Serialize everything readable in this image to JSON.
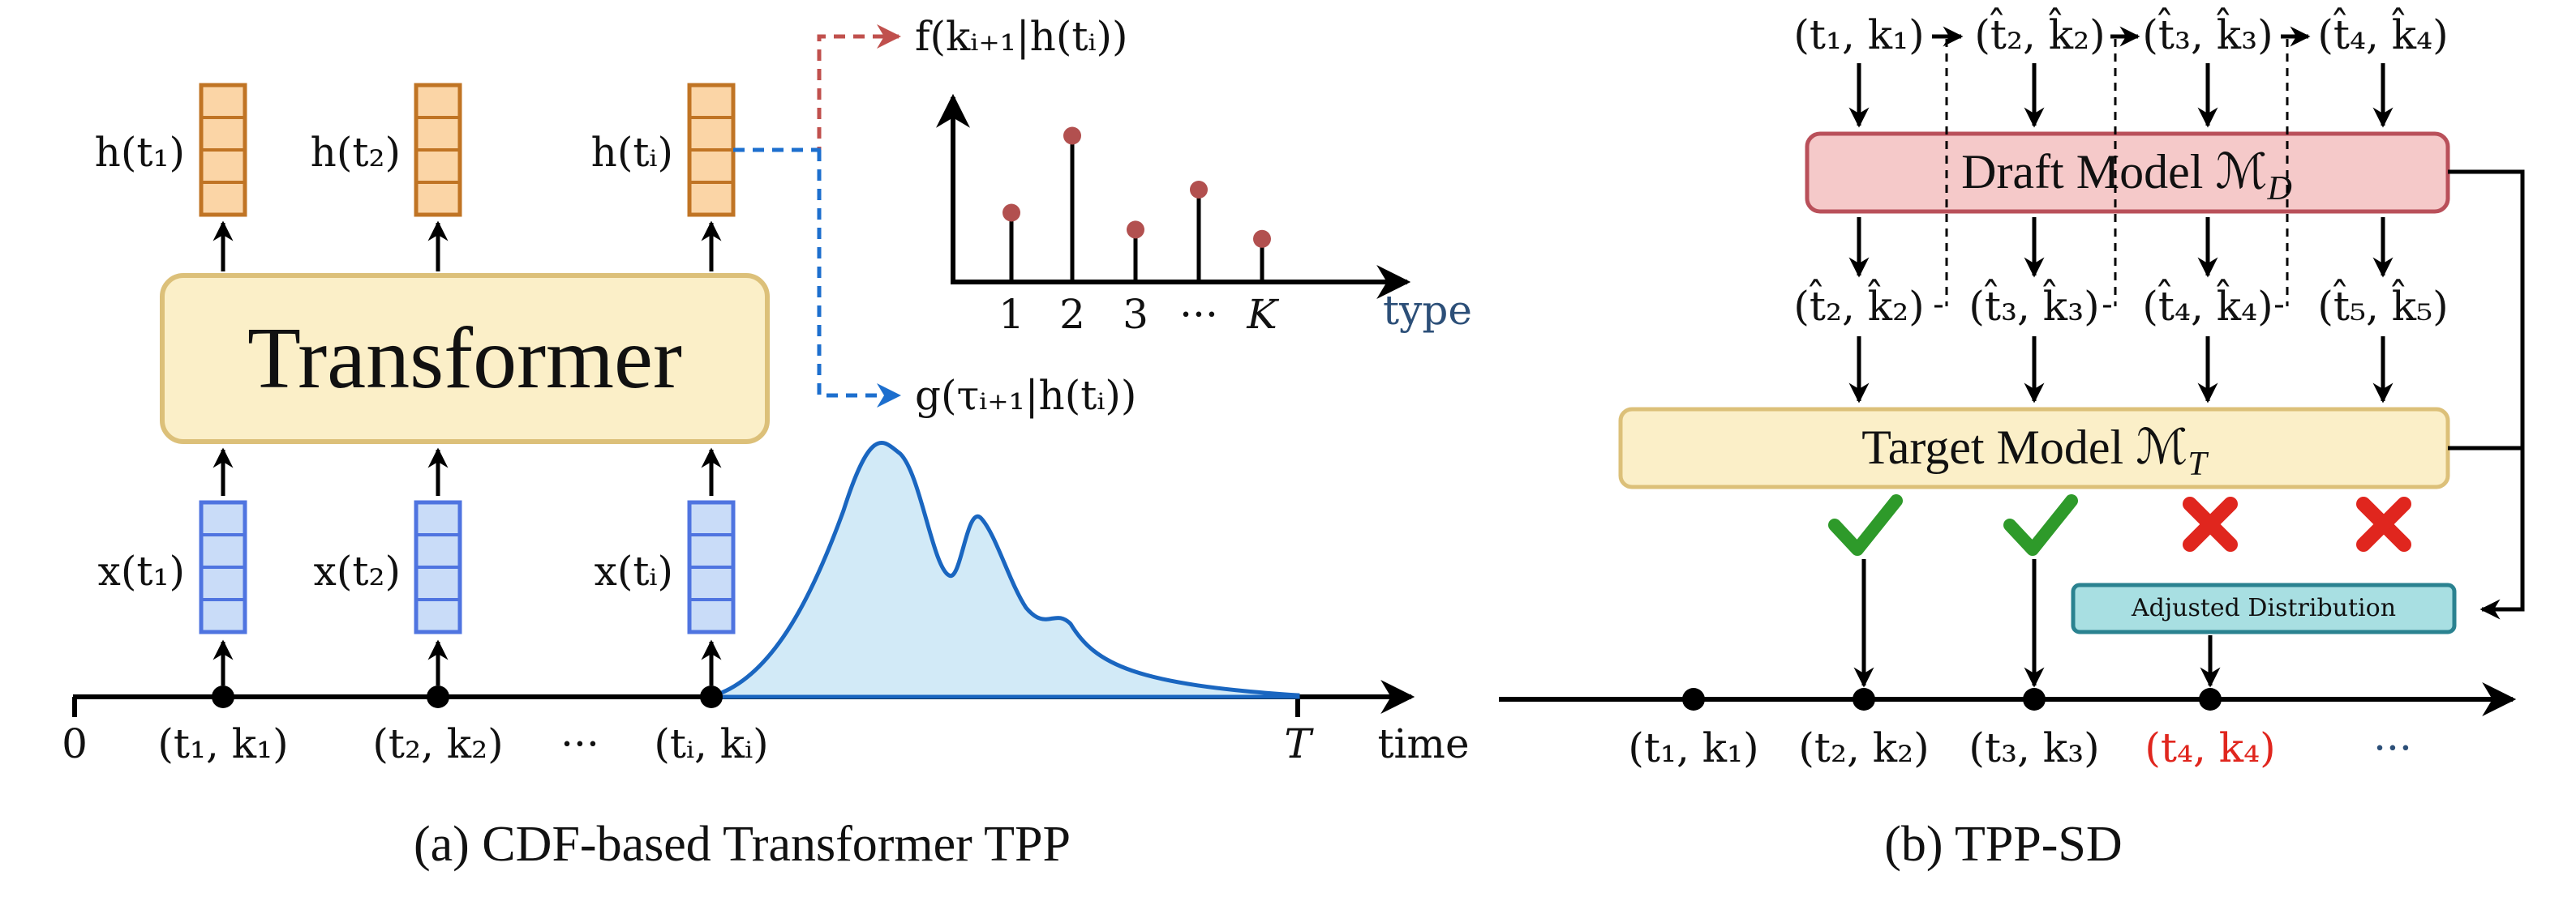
{
  "panel_a": {
    "caption": "(a) CDF-based Transformer TPP",
    "transformer_label": "Transformer",
    "hidden_labels": [
      "h(t₁)",
      "h(t₂)",
      "h(tᵢ)"
    ],
    "input_labels": [
      "x(t₁)",
      "x(t₂)",
      "x(tᵢ)"
    ],
    "event_labels": [
      "(t₁, k₁)",
      "(t₂, k₂)",
      "···",
      "(tᵢ, kᵢ)"
    ],
    "origin_label": "0",
    "end_label": "T",
    "time_label": "time",
    "f_label": "f(kᵢ₊₁|h(tᵢ))",
    "g_label": "g(τᵢ₊₁|h(tᵢ))",
    "type_axis_label": "type",
    "type_ticks": [
      "1",
      "2",
      "3",
      "···",
      "K"
    ],
    "type_probabilities": [
      0.45,
      0.95,
      0.34,
      0.6,
      0.28
    ]
  },
  "panel_b": {
    "caption": "(b) TPP-SD",
    "draft_label": "Draft Model ℳ",
    "draft_sub": "D",
    "target_label": "Target Model ℳ",
    "target_sub": "T",
    "adjusted_label": "Adjusted Distribution",
    "top_inputs": [
      "(t₁, k₁)",
      "(t̂₂, k̂₂)",
      "(t̂₃, k̂₃)",
      "(t̂₄, k̂₄)"
    ],
    "draft_outputs": [
      "(t̂₂, k̂₂)",
      "(t̂₃, k̂₃)",
      "(t̂₄, k̂₄)",
      "(t̂₅, k̂₅)"
    ],
    "verdicts": [
      "accept",
      "accept",
      "reject",
      "reject"
    ],
    "timeline_labels": [
      "(t₁, k₁)",
      "(t₂, k₂)",
      "(t₃, k₃)",
      "(t₄, k₄)",
      "···"
    ]
  },
  "colors": {
    "orange_fill": "#fbd5a6",
    "orange_stroke": "#c07424",
    "blue_fill": "#c9dcf8",
    "blue_stroke": "#4f74e0",
    "transformer_fill": "#fbefc8",
    "transformer_stroke": "#dcc079",
    "draft_fill": "#f5c9c9",
    "draft_stroke": "#b9505a",
    "adjusted_fill": "#a8dfe2",
    "adjusted_stroke": "#2a8290",
    "f_arrow": "#c0504d",
    "g_arrow": "#1d6fce",
    "density_fill": "#d2eaf7",
    "density_line": "#1a66c0",
    "stem_dot": "#b2504f",
    "accept": "#2e9a2a",
    "reject": "#e0261e",
    "highlight_label": "#e0261e",
    "type_label": "#2c4f78"
  }
}
